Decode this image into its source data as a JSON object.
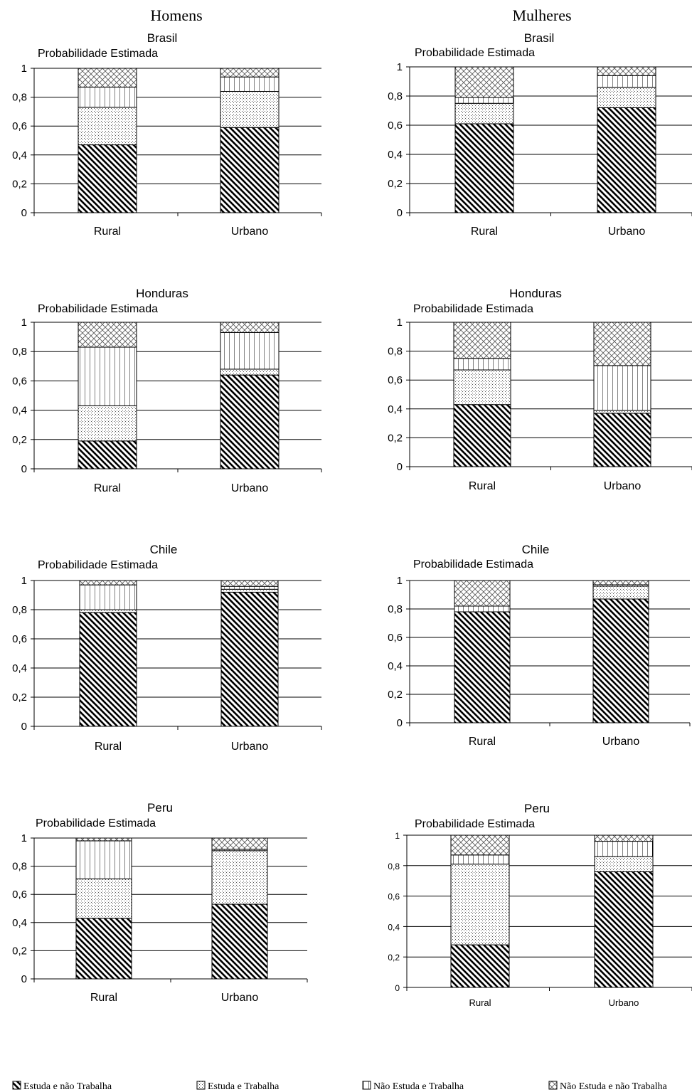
{
  "column_headers": [
    "Homens",
    "Mulheres"
  ],
  "legend": [
    {
      "label": "Estuda e não Trabalha",
      "pattern": "diag"
    },
    {
      "label": "Estuda e Trabalha",
      "pattern": "dots"
    },
    {
      "label": "Não Estuda e Trabalha",
      "pattern": "grid"
    },
    {
      "label": "Não Estuda e não Trabalha",
      "pattern": "cross"
    }
  ],
  "chart_data": [
    {
      "type": "bar",
      "stacked": true,
      "group": "Homens",
      "title": "Brasil",
      "ylabel": "Probabilidade Estimada",
      "categories": [
        "Rural",
        "Urbano"
      ],
      "ylim": [
        0,
        1
      ],
      "yticks": [
        "0",
        "0,2",
        "0,4",
        "0,6",
        "0,8",
        "1"
      ],
      "series": [
        {
          "pattern": "diag",
          "values": [
            0.47,
            0.59
          ]
        },
        {
          "pattern": "dots",
          "values": [
            0.26,
            0.25
          ]
        },
        {
          "pattern": "grid",
          "values": [
            0.14,
            0.1
          ]
        },
        {
          "pattern": "cross",
          "values": [
            0.13,
            0.06
          ]
        }
      ]
    },
    {
      "type": "bar",
      "stacked": true,
      "group": "Mulheres",
      "title": "Brasil",
      "ylabel": "Probabilidade Estimada",
      "categories": [
        "Rural",
        "Urbano"
      ],
      "ylim": [
        0,
        1
      ],
      "yticks": [
        "0",
        "0,2",
        "0,4",
        "0,6",
        "0,8",
        "1"
      ],
      "series": [
        {
          "pattern": "diag",
          "values": [
            0.61,
            0.72
          ]
        },
        {
          "pattern": "dots",
          "values": [
            0.14,
            0.14
          ]
        },
        {
          "pattern": "grid",
          "values": [
            0.04,
            0.08
          ]
        },
        {
          "pattern": "cross",
          "values": [
            0.21,
            0.06
          ]
        }
      ]
    },
    {
      "type": "bar",
      "stacked": true,
      "group": "Homens",
      "title": "Honduras",
      "ylabel": "Probabilidade Estimada",
      "categories": [
        "Rural",
        "Urbano"
      ],
      "ylim": [
        0,
        1
      ],
      "yticks": [
        "0",
        "0,2",
        "0,4",
        "0,6",
        "0,8",
        "1"
      ],
      "series": [
        {
          "pattern": "diag",
          "values": [
            0.19,
            0.64
          ]
        },
        {
          "pattern": "dots",
          "values": [
            0.24,
            0.04
          ]
        },
        {
          "pattern": "grid",
          "values": [
            0.4,
            0.25
          ]
        },
        {
          "pattern": "cross",
          "values": [
            0.17,
            0.07
          ]
        }
      ]
    },
    {
      "type": "bar",
      "stacked": true,
      "group": "Mulheres",
      "title": "Honduras",
      "ylabel": "Probabilidade Estimada",
      "categories": [
        "Rural",
        "Urbano"
      ],
      "ylim": [
        0,
        1
      ],
      "yticks": [
        "0",
        "0,2",
        "0,4",
        "0,6",
        "0,8",
        "1"
      ],
      "series": [
        {
          "pattern": "diag",
          "values": [
            0.43,
            0.37
          ]
        },
        {
          "pattern": "dots",
          "values": [
            0.24,
            0.02
          ]
        },
        {
          "pattern": "grid",
          "values": [
            0.08,
            0.31
          ]
        },
        {
          "pattern": "cross",
          "values": [
            0.25,
            0.3
          ]
        }
      ]
    },
    {
      "type": "bar",
      "stacked": true,
      "group": "Homens",
      "title": "Chile",
      "ylabel": "Probabilidade Estimada",
      "categories": [
        "Rural",
        "Urbano"
      ],
      "ylim": [
        0,
        1
      ],
      "yticks": [
        "0",
        "0,2",
        "0,4",
        "0,6",
        "0,8",
        "1"
      ],
      "series": [
        {
          "pattern": "diag",
          "values": [
            0.78,
            0.92
          ]
        },
        {
          "pattern": "dots",
          "values": [
            0.02,
            0.02
          ]
        },
        {
          "pattern": "grid",
          "values": [
            0.17,
            0.02
          ]
        },
        {
          "pattern": "cross",
          "values": [
            0.03,
            0.04
          ]
        }
      ]
    },
    {
      "type": "bar",
      "stacked": true,
      "group": "Mulheres",
      "title": "Chile",
      "ylabel": "Probabilidade Estimada",
      "categories": [
        "Rural",
        "Urbano"
      ],
      "ylim": [
        0,
        1
      ],
      "yticks": [
        "0",
        "0,2",
        "0,4",
        "0,6",
        "0,8",
        "1"
      ],
      "series": [
        {
          "pattern": "diag",
          "values": [
            0.78,
            0.87
          ]
        },
        {
          "pattern": "dots",
          "values": [
            0.0,
            0.09
          ]
        },
        {
          "pattern": "grid",
          "values": [
            0.04,
            0.01
          ]
        },
        {
          "pattern": "cross",
          "values": [
            0.18,
            0.03
          ]
        }
      ]
    },
    {
      "type": "bar",
      "stacked": true,
      "group": "Homens",
      "title": "Peru",
      "ylabel": "Probabilidade Estimada",
      "categories": [
        "Rural",
        "Urbano"
      ],
      "ylim": [
        0,
        1
      ],
      "yticks": [
        "0",
        "0,2",
        "0,4",
        "0,6",
        "0,8",
        "1"
      ],
      "series": [
        {
          "pattern": "diag",
          "values": [
            0.43,
            0.53
          ]
        },
        {
          "pattern": "dots",
          "values": [
            0.28,
            0.38
          ]
        },
        {
          "pattern": "grid",
          "values": [
            0.27,
            0.01
          ]
        },
        {
          "pattern": "cross",
          "values": [
            0.02,
            0.08
          ]
        }
      ]
    },
    {
      "type": "bar",
      "stacked": true,
      "group": "Mulheres",
      "title": "Peru",
      "ylabel": "Probabilidade Estimada",
      "categories": [
        "Rural",
        "Urbano"
      ],
      "ylim": [
        0,
        1
      ],
      "yticks": [
        "0",
        "0,2",
        "0,4",
        "0,6",
        "0,8",
        "1"
      ],
      "series": [
        {
          "pattern": "diag",
          "values": [
            0.28,
            0.76
          ]
        },
        {
          "pattern": "dots",
          "values": [
            0.53,
            0.1
          ]
        },
        {
          "pattern": "grid",
          "values": [
            0.06,
            0.1
          ]
        },
        {
          "pattern": "cross",
          "values": [
            0.13,
            0.04
          ]
        }
      ]
    }
  ]
}
